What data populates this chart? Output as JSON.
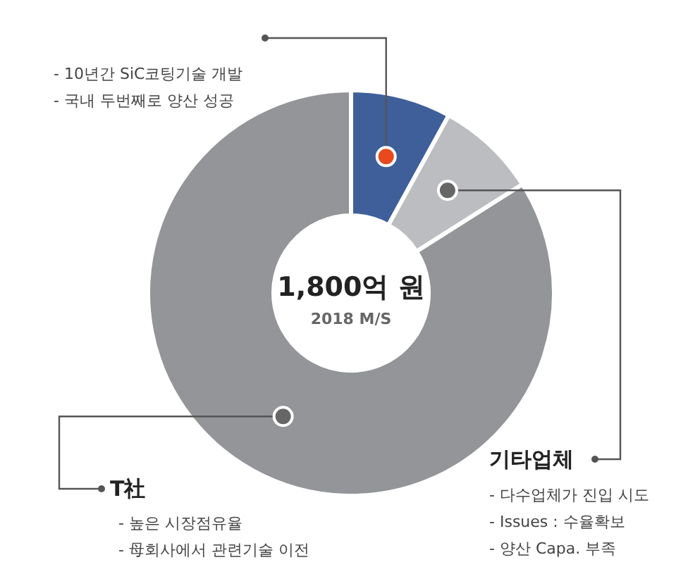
{
  "chart_data": {
    "type": "donut",
    "title": "1,800억 원",
    "subtitle": "2018 M/S",
    "categories": [
      null,
      "기타업체",
      "T社"
    ],
    "values": [
      8,
      8,
      84
    ],
    "colors": [
      "#3f5f9b",
      "#bcbdc0",
      "#939598"
    ],
    "annotations": [
      "- 10년간 SiC코팅기술 개발",
      "- 국내 두번째로 양산 성공",
      "- 다수업체가 진입 시도",
      "- Issues : 수율확보",
      "- 양산 Capa. 부족",
      "- 높은 시장점유율",
      "- 母회사에서 관련기술 이전"
    ]
  }
}
